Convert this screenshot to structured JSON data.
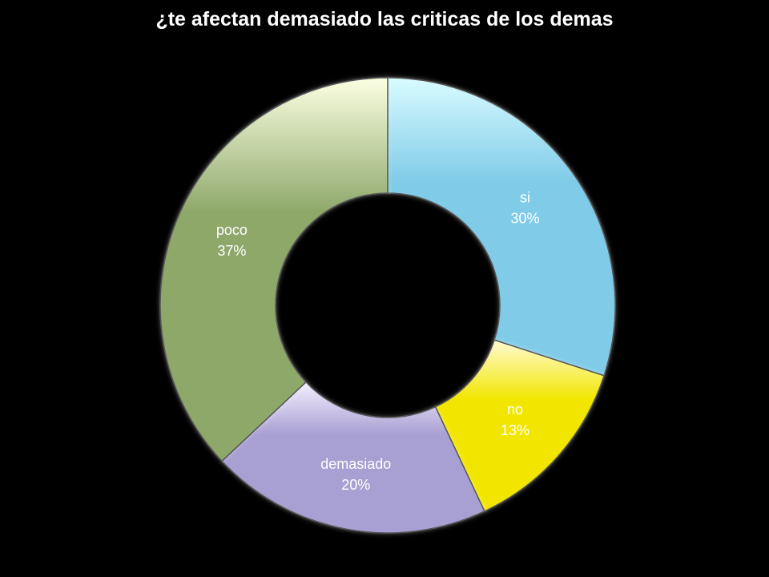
{
  "chart_data": {
    "type": "pie",
    "variant": "donut",
    "title": "¿te afectan demasiado las criticas de los demas",
    "background": "#000000",
    "slices": [
      {
        "label": "si",
        "value": 30,
        "percent_label": "30%",
        "color_light": "#d9fbff",
        "color_dark": "#7fcbe8"
      },
      {
        "label": "no",
        "value": 13,
        "percent_label": "13%",
        "color_light": "#fffbd2",
        "color_dark": "#f2e600"
      },
      {
        "label": "demasiado",
        "value": 20,
        "percent_label": "20%",
        "color_light": "#f4efff",
        "color_dark": "#a89fd2"
      },
      {
        "label": "poco",
        "value": 37,
        "percent_label": "37%",
        "color_light": "#fbffe2",
        "color_dark": "#8ea86a"
      }
    ],
    "start_angle_deg": 0,
    "direction": "clockwise"
  }
}
